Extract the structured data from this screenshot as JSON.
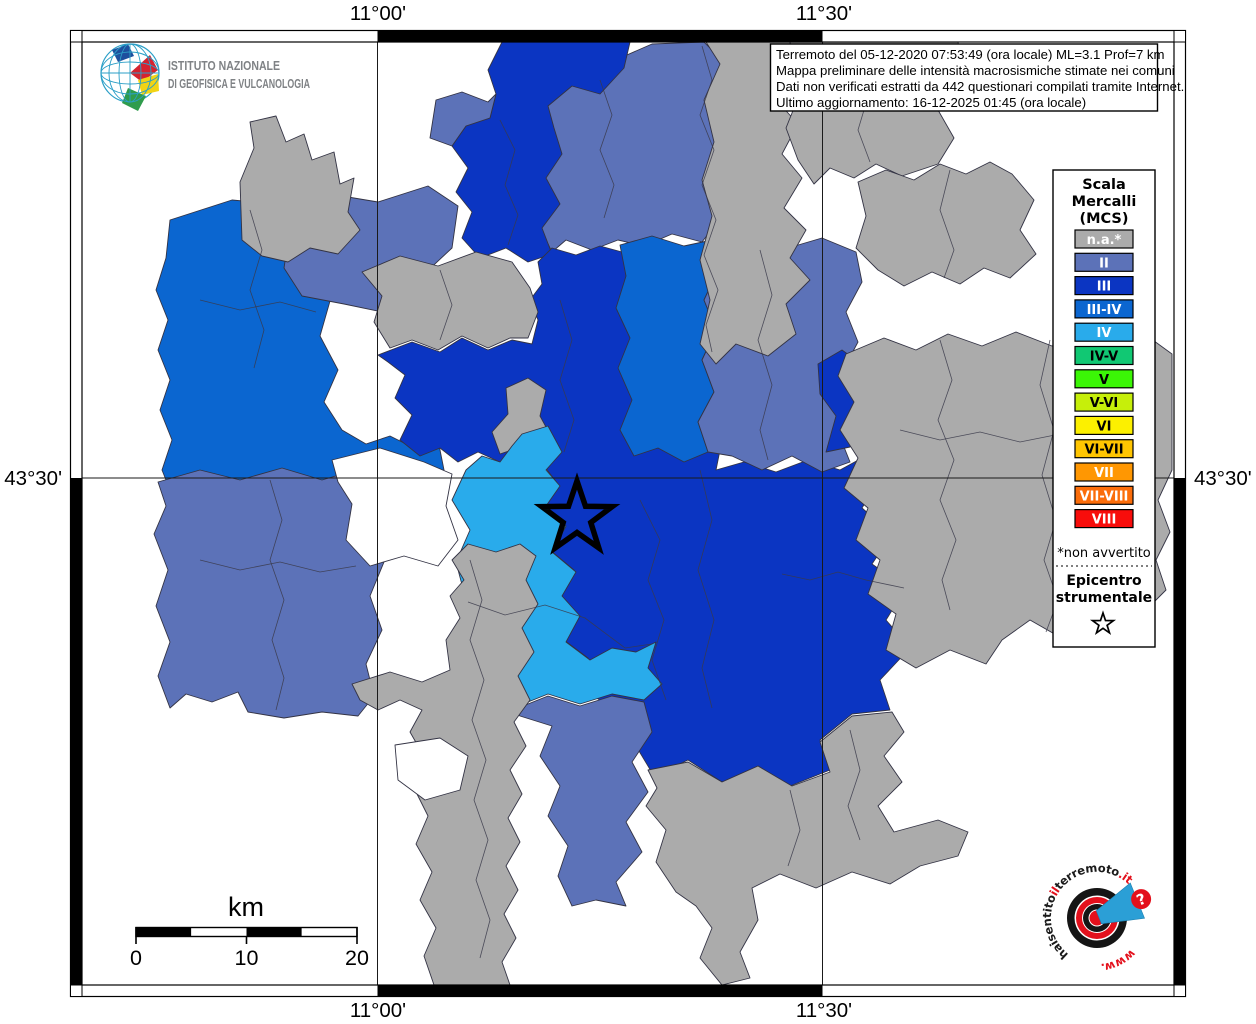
{
  "frame": {
    "meridian_labels": [
      "11°00'",
      "11°30'"
    ],
    "parallel_label": "43°30'"
  },
  "info_box": {
    "lines": [
      "Terremoto del 05-12-2020 07:53:49 (ora locale) ML=3.1 Prof=7 km",
      "Mappa preliminare delle intensità macrosismiche stimate nei comuni",
      "Dati non verificati estratti da 442 questionari compilati tramite Internet.",
      "Ultimo aggiornamento: 16-12-2025 01:45 (ora locale)"
    ]
  },
  "ingv_logo": {
    "line1": "ISTITUTO NAZIONALE",
    "line2": "DI GEOFISICA E VULCANOLOGIA"
  },
  "legend": {
    "title_lines": [
      "Scala",
      "Mercalli",
      "(MCS)"
    ],
    "classes": [
      {
        "label": "n.a.*",
        "color": "#ABABAB",
        "label_color": "#FFFFFF"
      },
      {
        "label": "II",
        "color": "#5C72B8",
        "label_color": "#FFFFFF"
      },
      {
        "label": "III",
        "color": "#0B35C2",
        "label_color": "#FFFFFF"
      },
      {
        "label": "III-IV",
        "color": "#0B66D0",
        "label_color": "#FFFFFF"
      },
      {
        "label": "IV",
        "color": "#29ABEB",
        "label_color": "#FFFFFF"
      },
      {
        "label": "IV-V",
        "color": "#11C873",
        "label_color": "#000000"
      },
      {
        "label": "V",
        "color": "#3BF606",
        "label_color": "#000000"
      },
      {
        "label": "V-VI",
        "color": "#C6EF0A",
        "label_color": "#000000"
      },
      {
        "label": "VI",
        "color": "#FCF000",
        "label_color": "#000000"
      },
      {
        "label": "VI-VII",
        "color": "#FFC501",
        "label_color": "#000000"
      },
      {
        "label": "VII",
        "color": "#FF9702",
        "label_color": "#FFFFFF"
      },
      {
        "label": "VII-VIII",
        "color": "#FB6D0A",
        "label_color": "#FFFFFF"
      },
      {
        "label": "VIII",
        "color": "#F80D0B",
        "label_color": "#FFFFFF"
      }
    ],
    "footnote": "*non avvertito",
    "epicenter_title_line1": "Epicentro",
    "epicenter_title_line2": "strumentale"
  },
  "scale_bar": {
    "unit_label": "km",
    "tick_labels": [
      "0",
      "10",
      "20"
    ]
  },
  "site_logo": {
    "arc_part1": "haisentito",
    "arc_part2": "il",
    "arc_part3": "terremoto",
    "arc_part4": ".it",
    "bottom_part": "www.",
    "question_mark": "?"
  },
  "palette": {
    "background": "#FFFFFF",
    "region_na": "#ABABAB",
    "region_ii": "#5C72B8",
    "region_iii": "#0B35C2",
    "region_iii_iv": "#0B66D0",
    "region_iv": "#29ABEB",
    "white_gap": "#FFFFFF",
    "region_border": "#333344",
    "graticule": "#1A1A1A",
    "epicenter_color": "#000000",
    "site_logo_red": "#E3101C",
    "site_logo_blue": "#2B9FD6"
  }
}
